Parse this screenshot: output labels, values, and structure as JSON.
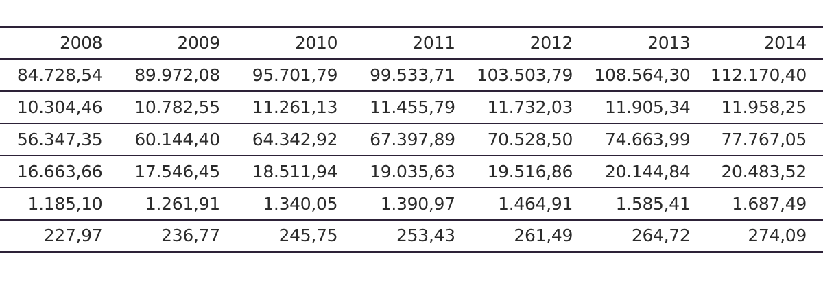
{
  "table": {
    "columns": [
      "2008",
      "2009",
      "2010",
      "2011",
      "2012",
      "2013",
      "2014"
    ],
    "rows": [
      [
        "84.728,54",
        "89.972,08",
        "95.701,79",
        "99.533,71",
        "103.503,79",
        "108.564,30",
        "112.170,40"
      ],
      [
        "10.304,46",
        "10.782,55",
        "11.261,13",
        "11.455,79",
        "11.732,03",
        "11.905,34",
        "11.958,25"
      ],
      [
        "56.347,35",
        "60.144,40",
        "64.342,92",
        "67.397,89",
        "70.528,50",
        "74.663,99",
        "77.767,05"
      ],
      [
        "16.663,66",
        "17.546,45",
        "18.511,94",
        "19.035,63",
        "19.516,86",
        "20.144,84",
        "20.483,52"
      ],
      [
        "1.185,10",
        "1.261,91",
        "1.340,05",
        "1.390,97",
        "1.464,91",
        "1.585,41",
        "1.687,49"
      ],
      [
        "227,97",
        "236,77",
        "245,75",
        "253,43",
        "261,49",
        "264,72",
        "274,09"
      ]
    ]
  },
  "colors": {
    "rule": "#2d2238",
    "text": "#2b2b2b",
    "background": "#ffffff"
  }
}
